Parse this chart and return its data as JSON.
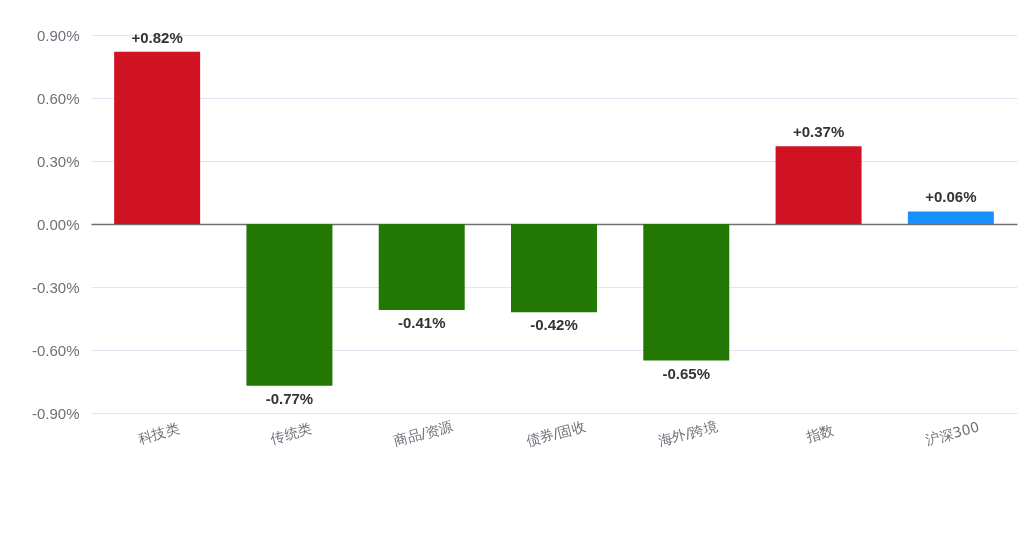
{
  "chart_data": {
    "type": "bar",
    "categories": [
      "科技类",
      "传统类",
      "商品/资源",
      "债券/固收",
      "海外/跨境",
      "指数",
      "沪深300"
    ],
    "values": [
      0.82,
      -0.77,
      -0.41,
      -0.42,
      -0.65,
      0.37,
      0.06
    ],
    "colors": [
      "#cf1322",
      "#237804",
      "#237804",
      "#237804",
      "#237804",
      "#cf1322",
      "#1890ff"
    ],
    "value_labels": [
      "+0.82%",
      "-0.77%",
      "-0.41%",
      "-0.42%",
      "-0.65%",
      "+0.37%",
      "+0.06%"
    ],
    "ylim": [
      -0.9,
      0.9
    ],
    "yticks": [
      {
        "value": -0.9,
        "label": "-0.90%"
      },
      {
        "value": -0.6,
        "label": "-0.60%"
      },
      {
        "value": -0.3,
        "label": "-0.30%"
      },
      {
        "value": 0,
        "label": "0.00%"
      },
      {
        "value": 0.3,
        "label": "0.30%"
      },
      {
        "value": 0.6,
        "label": "0.60%"
      },
      {
        "value": 0.9,
        "label": "0.90%"
      }
    ],
    "grid": "y"
  }
}
